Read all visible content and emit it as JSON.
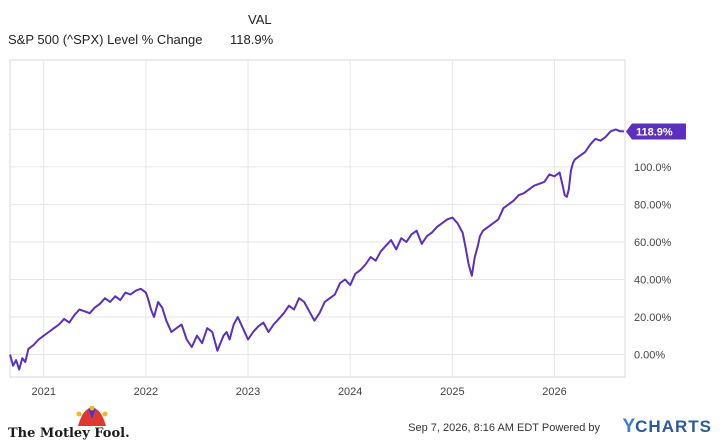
{
  "header": {
    "col_label": "VAL"
  },
  "legend": [
    {
      "name": "S&P 500 (^SPX) Level % Change",
      "value": "118.9%",
      "color": "#5b2fbf"
    }
  ],
  "footer": {
    "brand": "The Motley Fool.",
    "timestamp": "Sep 7, 2026, 8:16 AM EDT",
    "powered_by": "Powered by",
    "ycharts_y": "Y",
    "ycharts_rest": "CHARTS"
  },
  "chart_data": {
    "type": "line",
    "x_axis": {
      "tick_labels": [
        "2021",
        "2022",
        "2023",
        "2024",
        "2025",
        "2026"
      ],
      "range": [
        2020.67,
        2026.69
      ]
    },
    "y_axis": {
      "tick_labels": [
        "0.00%",
        "20.00%",
        "40.00%",
        "60.00%",
        "80.00%",
        "100.0%",
        "120.0%"
      ],
      "tick_values": [
        0,
        20,
        40,
        60,
        80,
        100,
        120
      ],
      "range": [
        -12,
        157
      ]
    },
    "grid": true,
    "end_label": "118.9%",
    "series": [
      {
        "name": "S&P 500 (^SPX) Level % Change",
        "color": "#5b2fbf",
        "x": [
          2020.67,
          2020.7,
          2020.73,
          2020.76,
          2020.79,
          2020.82,
          2020.85,
          2020.9,
          2020.95,
          2021.0,
          2021.05,
          2021.1,
          2021.15,
          2021.2,
          2021.25,
          2021.3,
          2021.35,
          2021.4,
          2021.45,
          2021.5,
          2021.55,
          2021.6,
          2021.65,
          2021.7,
          2021.75,
          2021.8,
          2021.85,
          2021.9,
          2021.95,
          2022.0,
          2022.02,
          2022.05,
          2022.08,
          2022.12,
          2022.16,
          2022.2,
          2022.25,
          2022.3,
          2022.35,
          2022.4,
          2022.45,
          2022.5,
          2022.55,
          2022.6,
          2022.65,
          2022.7,
          2022.73,
          2022.76,
          2022.79,
          2022.82,
          2022.86,
          2022.9,
          2022.95,
          2023.0,
          2023.05,
          2023.1,
          2023.15,
          2023.2,
          2023.25,
          2023.3,
          2023.35,
          2023.4,
          2023.45,
          2023.5,
          2023.55,
          2023.6,
          2023.65,
          2023.7,
          2023.75,
          2023.8,
          2023.85,
          2023.9,
          2023.95,
          2024.0,
          2024.05,
          2024.1,
          2024.15,
          2024.2,
          2024.25,
          2024.3,
          2024.35,
          2024.4,
          2024.45,
          2024.5,
          2024.55,
          2024.6,
          2024.65,
          2024.7,
          2024.75,
          2024.8,
          2024.85,
          2024.9,
          2024.95,
          2025.0,
          2025.05,
          2025.1,
          2025.13,
          2025.16,
          2025.19,
          2025.22,
          2025.25,
          2025.27,
          2025.3,
          2025.35,
          2025.4,
          2025.45,
          2025.5,
          2025.55,
          2025.6,
          2025.65,
          2025.7,
          2025.75,
          2025.8,
          2025.85,
          2025.9,
          2025.95,
          2026.0,
          2026.05,
          2026.08,
          2026.1,
          2026.12,
          2026.14,
          2026.16,
          2026.18,
          2026.2,
          2026.25,
          2026.3,
          2026.35,
          2026.4,
          2026.45,
          2026.5,
          2026.55,
          2026.6,
          2026.64,
          2026.66,
          2026.68
        ],
        "y": [
          0,
          -6,
          -3,
          -8,
          -2,
          -4,
          3,
          5,
          8,
          10,
          12,
          14,
          16,
          19,
          17,
          21,
          24,
          23,
          22,
          25,
          27,
          30,
          28,
          31,
          29,
          33,
          32,
          34,
          35,
          33,
          30,
          24,
          20,
          28,
          25,
          18,
          12,
          14,
          16,
          8,
          4,
          10,
          6,
          14,
          12,
          2,
          6,
          10,
          12,
          8,
          16,
          20,
          14,
          8,
          12,
          15,
          17,
          12,
          16,
          19,
          22,
          26,
          24,
          30,
          28,
          23,
          18,
          22,
          28,
          30,
          32,
          38,
          40,
          37,
          43,
          45,
          48,
          52,
          50,
          55,
          58,
          61,
          56,
          62,
          60,
          64,
          66,
          59,
          63,
          65,
          68,
          70,
          72,
          73,
          70,
          65,
          57,
          48,
          42,
          52,
          58,
          63,
          66,
          68,
          70,
          72,
          78,
          80,
          82,
          85,
          86,
          88,
          90,
          91,
          92,
          96,
          95,
          97,
          90,
          85,
          84,
          88,
          98,
          102,
          104,
          106,
          108,
          112,
          115,
          114,
          116,
          119,
          120,
          119,
          119,
          118.9
        ]
      }
    ]
  }
}
